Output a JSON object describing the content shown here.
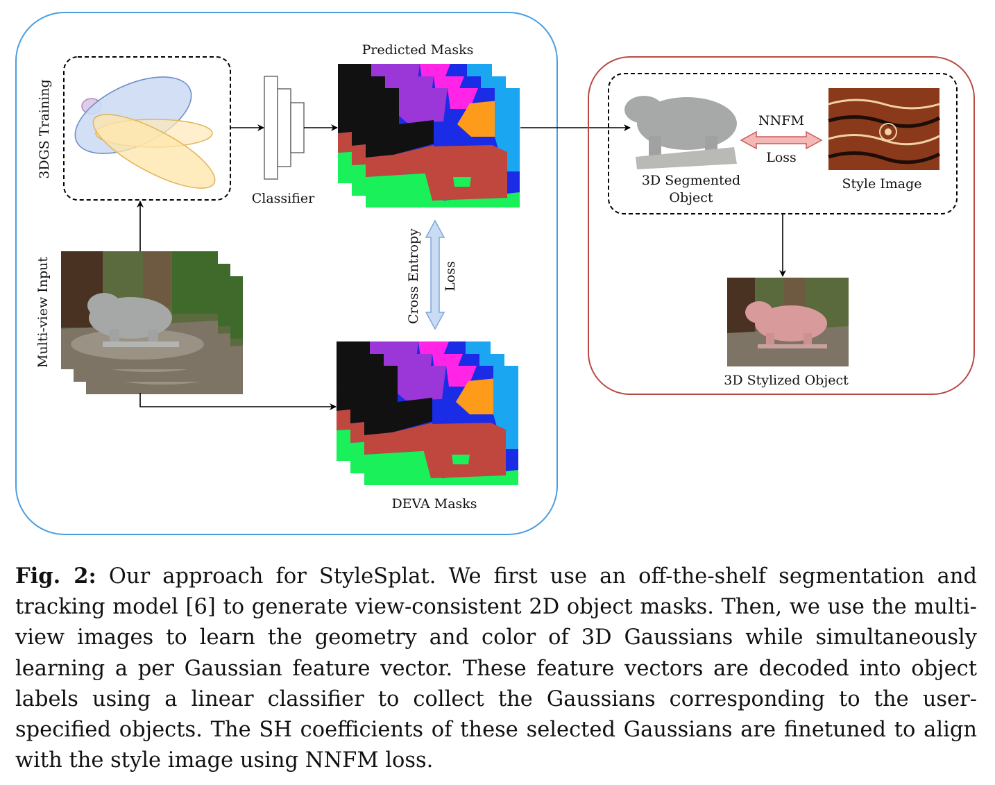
{
  "figure": {
    "labels": {
      "predicted_masks": "Predicted Masks",
      "training": "3DGS Training",
      "classifier": "Classifier",
      "multiview_input": "Multi-view Input",
      "cross_entropy": "Cross Entropy",
      "cross_entropy_loss": "Loss",
      "deva_masks": "DEVA Masks",
      "nnfm": "NNFM",
      "nnfm_loss": "Loss",
      "segmented_object_line1": "3D Segmented",
      "segmented_object_line2": "Object",
      "style_image": "Style Image",
      "stylized_object": "3D Stylized Object"
    },
    "colors": {
      "left_panel_border": "#4a9ee0",
      "right_panel_border": "#b84a44",
      "gaussian_blue": "#7ea6e0",
      "gaussian_yellow": "#ffe29a",
      "gaussian_purple": "#cdb2dd",
      "mask_red": "#c0473e",
      "mask_green": "#19f05a",
      "mask_purple": "#9b36d8",
      "mask_orange": "#ff9b1a",
      "mask_blue": "#1a2ce6",
      "mask_cyan": "#1aa6f0",
      "mask_magenta": "#ff24e6",
      "nnfm_arrow": "#f4b8b6",
      "cross_entropy_arrow": "#c9dcf4"
    }
  },
  "caption": {
    "label": "Fig. 2:",
    "text": "Our approach for StyleSplat. We first use an off-the-shelf segmentation and tracking model [6] to generate view-consistent 2D object masks. Then, we use the multi-view images to learn the geometry and color of 3D Gaussians while simultaneously learning a per Gaussian feature vector. These feature vectors are decoded into object labels using a linear classifier to collect the Gaussians corresponding to the user-specified objects. The SH coefficients of these selected Gaussians are finetuned to align with the style image using NNFM loss."
  }
}
